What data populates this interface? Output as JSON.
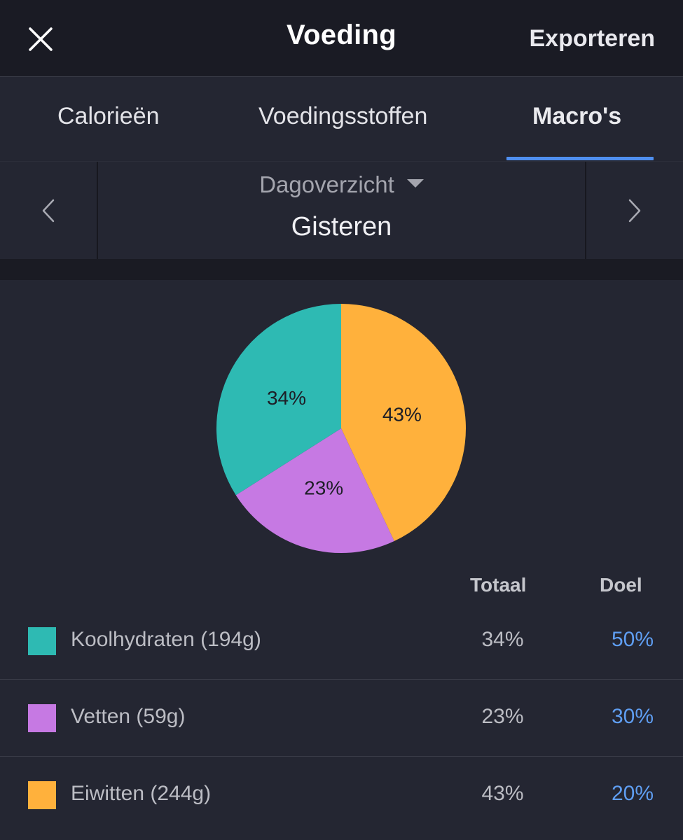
{
  "header": {
    "title": "Voeding",
    "export_label": "Exporteren",
    "close_icon": "close-icon"
  },
  "tabs": [
    {
      "label": "Calorieën",
      "active": false
    },
    {
      "label": "Voedingsstoffen",
      "active": false
    },
    {
      "label": "Macro's",
      "active": true
    }
  ],
  "date_nav": {
    "period": "Dagoverzicht",
    "date": "Gisteren",
    "prev_icon": "chevron-left-icon",
    "next_icon": "chevron-right-icon"
  },
  "chart_data": {
    "type": "pie",
    "slices": [
      {
        "label": "Eiwitten",
        "value": 43,
        "color": "#ffb13c"
      },
      {
        "label": "Vetten",
        "value": 23,
        "color": "#c679e3"
      },
      {
        "label": "Koolhydraten",
        "value": 34,
        "color": "#2ebab3"
      }
    ],
    "data_labels": [
      "43%",
      "23%",
      "34%"
    ]
  },
  "table": {
    "columns": {
      "total": "Totaal",
      "goal": "Doel"
    },
    "rows": [
      {
        "label": "Koolhydraten (194g)",
        "total": "34%",
        "goal": "50%",
        "color": "#2ebab3"
      },
      {
        "label": "Vetten (59g)",
        "total": "23%",
        "goal": "30%",
        "color": "#c679e3"
      },
      {
        "label": "Eiwitten (244g)",
        "total": "43%",
        "goal": "20%",
        "color": "#ffb13c"
      }
    ]
  }
}
